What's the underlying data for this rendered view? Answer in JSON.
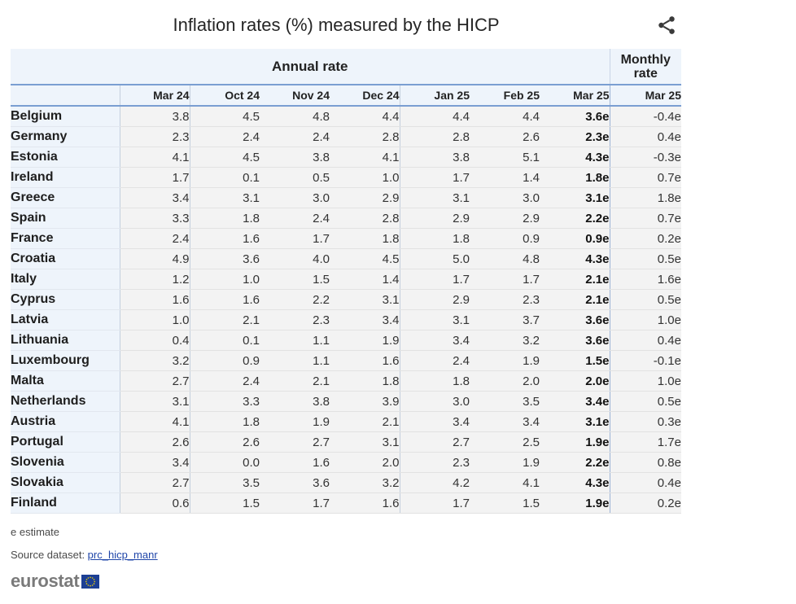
{
  "title": "Inflation rates (%) measured by the HICP",
  "share_icon": "share-icon",
  "colors": {
    "header_bg": "#eef4fb",
    "cell_bg": "#f3f3f3",
    "rule": "#7a9ed2",
    "link": "#1f45a8",
    "flag": "#1c3f94"
  },
  "table": {
    "group_annual": "Annual rate",
    "group_monthly": "Monthly rate",
    "columns": [
      "Mar 24",
      "Oct 24",
      "Nov 24",
      "Dec 24",
      "Jan 25",
      "Feb 25",
      "Mar 25",
      "Mar 25"
    ]
  },
  "chart_data": {
    "type": "table",
    "title": "Inflation rates (%) measured by the HICP",
    "column_groups": [
      {
        "label": "Annual rate",
        "columns": [
          "Mar 24",
          "Oct 24",
          "Nov 24",
          "Dec 24",
          "Jan 25",
          "Feb 25",
          "Mar 25"
        ]
      },
      {
        "label": "Monthly rate",
        "columns": [
          "Mar 25"
        ]
      }
    ],
    "rows": [
      {
        "country": "Belgium",
        "values": [
          "3.8",
          "4.5",
          "4.8",
          "4.4",
          "4.4",
          "4.4",
          "3.6e",
          "-0.4e"
        ]
      },
      {
        "country": "Germany",
        "values": [
          "2.3",
          "2.4",
          "2.4",
          "2.8",
          "2.8",
          "2.6",
          "2.3e",
          "0.4e"
        ]
      },
      {
        "country": "Estonia",
        "values": [
          "4.1",
          "4.5",
          "3.8",
          "4.1",
          "3.8",
          "5.1",
          "4.3e",
          "-0.3e"
        ]
      },
      {
        "country": "Ireland",
        "values": [
          "1.7",
          "0.1",
          "0.5",
          "1.0",
          "1.7",
          "1.4",
          "1.8e",
          "0.7e"
        ]
      },
      {
        "country": "Greece",
        "values": [
          "3.4",
          "3.1",
          "3.0",
          "2.9",
          "3.1",
          "3.0",
          "3.1e",
          "1.8e"
        ]
      },
      {
        "country": "Spain",
        "values": [
          "3.3",
          "1.8",
          "2.4",
          "2.8",
          "2.9",
          "2.9",
          "2.2e",
          "0.7e"
        ]
      },
      {
        "country": "France",
        "values": [
          "2.4",
          "1.6",
          "1.7",
          "1.8",
          "1.8",
          "0.9",
          "0.9e",
          "0.2e"
        ]
      },
      {
        "country": "Croatia",
        "values": [
          "4.9",
          "3.6",
          "4.0",
          "4.5",
          "5.0",
          "4.8",
          "4.3e",
          "0.5e"
        ]
      },
      {
        "country": "Italy",
        "values": [
          "1.2",
          "1.0",
          "1.5",
          "1.4",
          "1.7",
          "1.7",
          "2.1e",
          "1.6e"
        ]
      },
      {
        "country": "Cyprus",
        "values": [
          "1.6",
          "1.6",
          "2.2",
          "3.1",
          "2.9",
          "2.3",
          "2.1e",
          "0.5e"
        ]
      },
      {
        "country": "Latvia",
        "values": [
          "1.0",
          "2.1",
          "2.3",
          "3.4",
          "3.1",
          "3.7",
          "3.6e",
          "1.0e"
        ]
      },
      {
        "country": "Lithuania",
        "values": [
          "0.4",
          "0.1",
          "1.1",
          "1.9",
          "3.4",
          "3.2",
          "3.6e",
          "0.4e"
        ]
      },
      {
        "country": "Luxembourg",
        "values": [
          "3.2",
          "0.9",
          "1.1",
          "1.6",
          "2.4",
          "1.9",
          "1.5e",
          "-0.1e"
        ]
      },
      {
        "country": "Malta",
        "values": [
          "2.7",
          "2.4",
          "2.1",
          "1.8",
          "1.8",
          "2.0",
          "2.0e",
          "1.0e"
        ]
      },
      {
        "country": "Netherlands",
        "values": [
          "3.1",
          "3.3",
          "3.8",
          "3.9",
          "3.0",
          "3.5",
          "3.4e",
          "0.5e"
        ]
      },
      {
        "country": "Austria",
        "values": [
          "4.1",
          "1.8",
          "1.9",
          "2.1",
          "3.4",
          "3.4",
          "3.1e",
          "0.3e"
        ]
      },
      {
        "country": "Portugal",
        "values": [
          "2.6",
          "2.6",
          "2.7",
          "3.1",
          "2.7",
          "2.5",
          "1.9e",
          "1.7e"
        ]
      },
      {
        "country": "Slovenia",
        "values": [
          "3.4",
          "0.0",
          "1.6",
          "2.0",
          "2.3",
          "1.9",
          "2.2e",
          "0.8e"
        ]
      },
      {
        "country": "Slovakia",
        "values": [
          "2.7",
          "3.5",
          "3.6",
          "3.2",
          "4.2",
          "4.1",
          "4.3e",
          "0.4e"
        ]
      },
      {
        "country": "Finland",
        "values": [
          "0.6",
          "1.5",
          "1.7",
          "1.6",
          "1.7",
          "1.5",
          "1.9e",
          "0.2e"
        ]
      }
    ]
  },
  "footer": {
    "note": "e estimate",
    "source_label": "Source dataset: ",
    "source_link": "prc_hicp_manr",
    "logo_text": "eurostat",
    "logo_icon": "eu-flag-icon"
  }
}
